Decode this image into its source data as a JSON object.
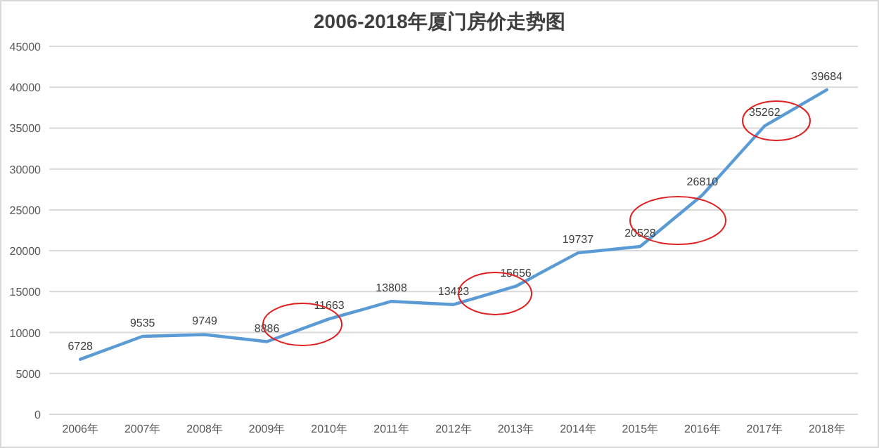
{
  "chart_data": {
    "type": "line",
    "title": "2006-2018年厦门房价走势图",
    "categories": [
      "2006年",
      "2007年",
      "2008年",
      "2009年",
      "2010年",
      "2011年",
      "2012年",
      "2013年",
      "2014年",
      "2015年",
      "2016年",
      "2017年",
      "2018年"
    ],
    "series": [
      {
        "color": "#5b9bd5",
        "values": [
          6728,
          9535,
          9749,
          8886,
          11663,
          13808,
          13423,
          15656,
          19737,
          20528,
          26810,
          35262,
          39684
        ]
      }
    ],
    "ylim": [
      0,
      45000
    ],
    "yticks": [
      0,
      5000,
      10000,
      15000,
      20000,
      25000,
      30000,
      35000,
      40000,
      45000
    ],
    "grid": "y",
    "data_labels": true,
    "marker": "none",
    "line_style": "solid"
  }
}
